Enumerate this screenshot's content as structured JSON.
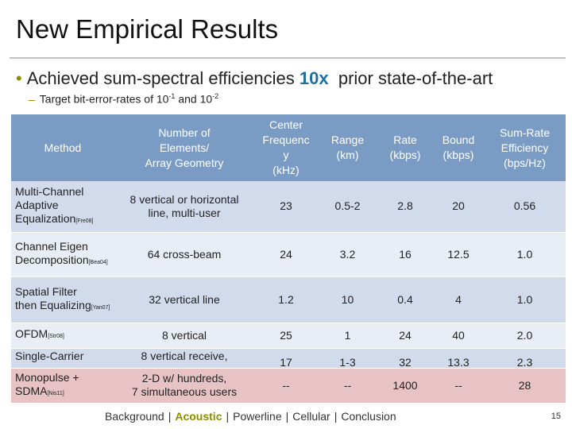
{
  "slide": {
    "title": "New Empirical Results",
    "bullet": {
      "dot": "•",
      "pre": "Achieved sum-spectral efficiencies ",
      "highlight": "10x",
      "post": "  prior state-of-the-art"
    },
    "subbullet": {
      "dash": "–",
      "pre": "Target bit-error-rates of 10",
      "sup1": "-1",
      "mid": " and 10",
      "sup2": "-2"
    },
    "colors": {
      "header_bg": "#7a9cc4",
      "row_dark": "#d2dbec",
      "row_light": "#e8edf6",
      "row_highlight": "#e8c3c6",
      "accent": "#8c8c00",
      "highlight_text": "#1f6fa3"
    }
  },
  "table": {
    "headers": [
      [
        "Method"
      ],
      [
        "Number of",
        "Elements/",
        "Array Geometry"
      ],
      [
        "Center",
        "Frequenc",
        "y",
        "(kHz)"
      ],
      [
        "Range",
        "(km)"
      ],
      [
        "Rate",
        "(kbps)"
      ],
      [
        "Bound",
        "(kbps)"
      ],
      [
        "Sum-Rate",
        "Efficiency",
        "(bps/Hz)"
      ]
    ],
    "rows": [
      {
        "method_lines": [
          "Multi-Channel",
          "Adaptive",
          "Equalization"
        ],
        "cite": "[Fre08]",
        "elements": [
          "8 vertical or horizontal",
          "line, multi-user"
        ],
        "freq": "23",
        "range": "0.5-2",
        "rate": "2.8",
        "bound": "20",
        "eff": "0.56"
      },
      {
        "method_lines": [
          "Channel Eigen",
          "Decomposition"
        ],
        "cite": "[Bea04]",
        "elements": [
          "64 cross-beam"
        ],
        "freq": "24",
        "range": "3.2",
        "rate": "16",
        "bound": "12.5",
        "eff": "1.0"
      },
      {
        "method_lines": [
          "Spatial Filter",
          "then Equalizing"
        ],
        "cite": "[Yan07]",
        "elements": [
          "32 vertical line"
        ],
        "freq": "1.2",
        "range": "10",
        "rate": "0.4",
        "bound": "4",
        "eff": "1.0"
      },
      {
        "method_lines": [
          "OFDM"
        ],
        "cite": "[Str08]",
        "elements": [
          "8 vertical"
        ],
        "freq": "25",
        "range": "1",
        "rate": "24",
        "bound": "40",
        "eff": "2.0"
      },
      {
        "method_lines": [
          "Single-Carrier"
        ],
        "cite": "",
        "elements": [
          "8 vertical receive,"
        ],
        "freq": "17",
        "range": "1-3",
        "rate": "32",
        "bound": "13.3",
        "eff": "2.3"
      },
      {
        "method_lines": [
          "Monopulse +",
          "SDMA"
        ],
        "cite": "[Nis11]",
        "elements": [
          "2-D w/ hundreds,",
          "7 simultaneous users"
        ],
        "freq": "--",
        "range": "--",
        "rate": "1400",
        "bound": "--",
        "eff": "28"
      }
    ]
  },
  "footer": {
    "items": [
      "Background",
      "Acoustic",
      "Powerline",
      "Cellular",
      "Conclusion"
    ],
    "separator": "|",
    "page_number": "15"
  }
}
